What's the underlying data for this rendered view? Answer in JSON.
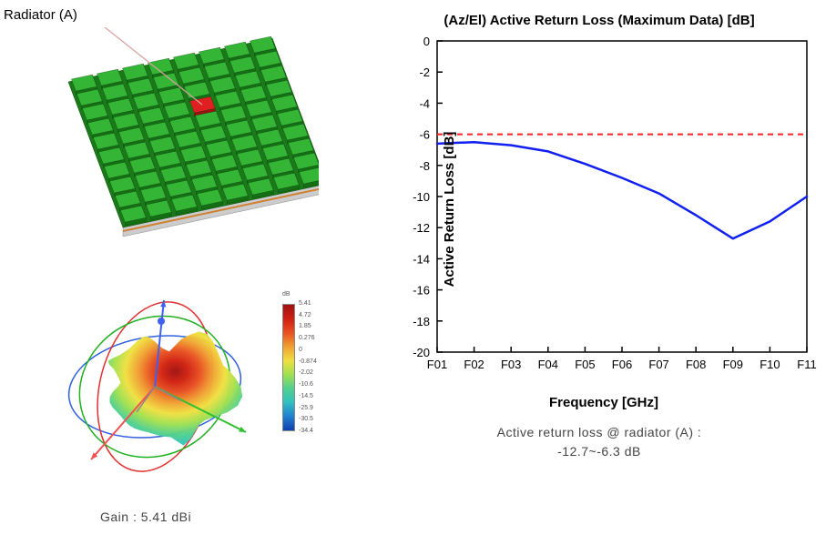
{
  "left": {
    "radiator_label": "Radiator (A)",
    "gain_label": "Gain : 5.41 dBi",
    "array": {
      "rows": 10,
      "cols": 8,
      "board_color": "#1a7a1a",
      "cell_color": "#2aa02a",
      "cell_top_color": "#35b535",
      "highlight_cell": {
        "row": 3,
        "col": 4,
        "color": "#e02020"
      },
      "side_color_dark": "#555555",
      "side_color_light": "#cccccc",
      "stripe_color": "#d08030"
    },
    "pattern": {
      "orbit_colors": {
        "x": "#e03030",
        "y": "#20b020",
        "z": "#3060e0"
      },
      "arrow_colors": {
        "x": "#f05050",
        "y": "#30c030",
        "z": "#4060f0"
      },
      "surface_gradient": [
        "#a01010",
        "#d02010",
        "#e85020",
        "#f0a030",
        "#f0e040",
        "#a0e050",
        "#50d090",
        "#30c0c0"
      ]
    },
    "colorbar": {
      "title": "dB",
      "labels": [
        "5.41",
        "4.72",
        "1.85",
        "0.276",
        "0",
        "-0.874",
        "-2.02",
        "-10.6",
        "-14.5",
        "-25.9",
        "-30.5",
        "-34.4"
      ],
      "gradient": [
        "#a01010",
        "#d02010",
        "#e85020",
        "#f0a030",
        "#f0e040",
        "#a0e050",
        "#50d090",
        "#30c0c0",
        "#2080d0",
        "#1040b0"
      ]
    }
  },
  "chart": {
    "type": "line",
    "title": "(Az/El) Active Return Loss (Maximum Data) [dB]",
    "xlabel": "Frequency [GHz]",
    "ylabel": "Active Return Loss [dB]",
    "x_ticks": [
      "F01",
      "F02",
      "F03",
      "F04",
      "F05",
      "F06",
      "F07",
      "F08",
      "F09",
      "F10",
      "F11"
    ],
    "y_min": -20,
    "y_max": 0,
    "y_step": 2,
    "ref_line": {
      "value": -6,
      "color": "#ff2020",
      "dash": "6,5",
      "width": 2
    },
    "series": {
      "color": "#1020f0",
      "width": 2.5,
      "values": [
        -6.6,
        -6.5,
        -6.7,
        -7.1,
        -7.9,
        -8.8,
        -9.8,
        -11.2,
        -12.7,
        -11.6,
        -10.0
      ]
    },
    "plot_bg": "#ffffff",
    "axis_color": "#000000",
    "tick_fontsize": 13,
    "label_fontsize": 15
  },
  "caption": {
    "line1": "Active return loss @ radiator (A) :",
    "line2": "-12.7~-6.3 dB"
  }
}
